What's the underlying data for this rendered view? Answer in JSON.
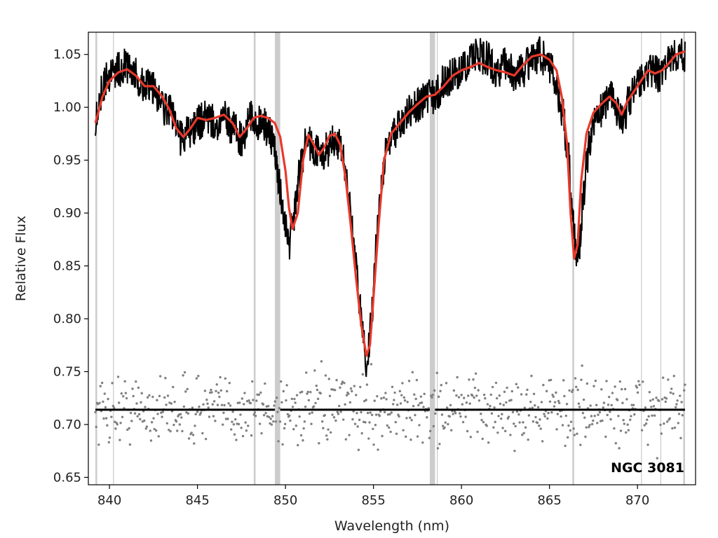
{
  "chart_data": {
    "type": "line",
    "xlabel": "Wavelength (nm)",
    "ylabel": "Relative Flux",
    "xlim": [
      838.8,
      873.3
    ],
    "ylim": [
      0.643,
      1.071
    ],
    "xticks": [
      840,
      845,
      850,
      855,
      860,
      865,
      870
    ],
    "yticks": [
      0.65,
      0.7,
      0.75,
      0.8,
      0.85,
      0.9,
      0.95,
      1.0,
      1.05
    ],
    "grid": false,
    "annotation": "NGC 3081",
    "colors": {
      "observed": "#000000",
      "model": "#e8392b",
      "residuals": "#808080",
      "masked_regions": "#cccccc",
      "residual_baseline": "#000000"
    },
    "series": [
      {
        "style": "black-line",
        "x": [
          839.2,
          839.6,
          840.0,
          840.5,
          841.0,
          841.5,
          842.0,
          842.5,
          843.0,
          843.5,
          844.0,
          844.5,
          845.0,
          845.5,
          846.0,
          846.5,
          847.0,
          847.5,
          848.0,
          848.5,
          849.0,
          849.4,
          849.6,
          849.9,
          850.2,
          850.5,
          850.8,
          851.2,
          851.6,
          852.0,
          852.4,
          852.8,
          853.2,
          853.6,
          854.0,
          854.3,
          854.6,
          854.9,
          855.2,
          855.6,
          856.0,
          856.5,
          857.0,
          857.5,
          858.0,
          858.5,
          859.0,
          859.5,
          860.0,
          860.5,
          861.0,
          861.5,
          862.0,
          862.5,
          863.0,
          863.5,
          864.0,
          864.5,
          865.0,
          865.4,
          865.8,
          866.1,
          866.3,
          866.5,
          866.7,
          866.9,
          867.2,
          867.6,
          868.0,
          868.4,
          868.8,
          869.2,
          869.6,
          870.0,
          870.4,
          870.8,
          871.2,
          871.6,
          872.0,
          872.4,
          872.7
        ],
        "y": [
          0.99,
          1.02,
          1.03,
          1.035,
          1.04,
          1.03,
          1.02,
          1.02,
          1.0,
          0.995,
          0.97,
          0.975,
          0.985,
          0.99,
          0.985,
          0.99,
          0.98,
          0.97,
          0.99,
          0.985,
          0.98,
          0.96,
          0.93,
          0.9,
          0.87,
          0.9,
          0.94,
          0.97,
          0.96,
          0.955,
          0.96,
          0.97,
          0.96,
          0.92,
          0.85,
          0.8,
          0.76,
          0.8,
          0.88,
          0.95,
          0.97,
          0.985,
          0.995,
          1.0,
          1.01,
          1.01,
          1.025,
          1.03,
          1.035,
          1.045,
          1.05,
          1.045,
          1.035,
          1.04,
          1.03,
          1.035,
          1.045,
          1.05,
          1.04,
          1.02,
          0.99,
          0.95,
          0.9,
          0.86,
          0.87,
          0.91,
          0.96,
          0.99,
          1.0,
          1.01,
          1.0,
          0.99,
          1.01,
          1.02,
          1.03,
          1.035,
          1.03,
          1.04,
          1.05,
          1.05,
          1.05
        ]
      },
      {
        "style": "red-line",
        "x": [
          839.2,
          839.6,
          840.0,
          840.5,
          841.0,
          841.5,
          842.0,
          842.5,
          843.0,
          843.4,
          843.8,
          844.2,
          844.6,
          845.0,
          845.5,
          846.0,
          846.5,
          847.0,
          847.4,
          847.8,
          848.2,
          848.6,
          849.0,
          849.4,
          849.7,
          850.0,
          850.2,
          850.4,
          850.7,
          851.0,
          851.3,
          851.6,
          851.9,
          852.2,
          852.5,
          852.8,
          853.1,
          853.4,
          853.7,
          854.0,
          854.3,
          854.6,
          854.8,
          855.0,
          855.3,
          855.6,
          856.0,
          856.5,
          857.0,
          857.5,
          858.0,
          858.5,
          859.0,
          859.5,
          860.0,
          860.5,
          861.0,
          861.5,
          862.0,
          862.5,
          863.0,
          863.5,
          864.0,
          864.5,
          865.0,
          865.4,
          865.7,
          866.0,
          866.2,
          866.4,
          866.6,
          866.8,
          867.1,
          867.5,
          868.0,
          868.4,
          868.8,
          869.1,
          869.4,
          869.8,
          870.2,
          870.6,
          871.0,
          871.4,
          871.8,
          872.2,
          872.7
        ],
        "y": [
          0.985,
          1.01,
          1.025,
          1.033,
          1.036,
          1.03,
          1.02,
          1.02,
          1.01,
          0.998,
          0.98,
          0.972,
          0.98,
          0.99,
          0.988,
          0.99,
          0.993,
          0.985,
          0.972,
          0.98,
          0.99,
          0.992,
          0.99,
          0.985,
          0.972,
          0.94,
          0.905,
          0.885,
          0.9,
          0.95,
          0.974,
          0.965,
          0.955,
          0.962,
          0.973,
          0.975,
          0.965,
          0.935,
          0.89,
          0.84,
          0.795,
          0.765,
          0.775,
          0.82,
          0.89,
          0.95,
          0.975,
          0.985,
          0.995,
          1.003,
          1.01,
          1.012,
          1.02,
          1.03,
          1.035,
          1.038,
          1.042,
          1.038,
          1.035,
          1.033,
          1.03,
          1.04,
          1.048,
          1.05,
          1.045,
          1.035,
          1.01,
          0.965,
          0.9,
          0.857,
          0.87,
          0.93,
          0.975,
          0.995,
          1.004,
          1.01,
          1.004,
          0.993,
          1.005,
          1.015,
          1.025,
          1.035,
          1.032,
          1.035,
          1.042,
          1.05,
          1.053
        ]
      }
    ],
    "masked_regions": [
      [
        839.2,
        839.3
      ],
      [
        840.2,
        840.25
      ],
      [
        848.2,
        848.3
      ],
      [
        849.4,
        849.7
      ],
      [
        858.2,
        858.5
      ],
      [
        858.6,
        858.65
      ],
      [
        866.3,
        866.4
      ],
      [
        870.2,
        870.25
      ],
      [
        871.3,
        871.35
      ],
      [
        872.6,
        872.7
      ]
    ],
    "residual_baseline": {
      "y": 0.714,
      "segments": [
        [
          839.2,
          849.4
        ],
        [
          849.7,
          858.2
        ],
        [
          858.5,
          872.7
        ]
      ]
    },
    "residual_points": {
      "x_range": [
        839.2,
        872.7
      ],
      "y_center": 0.714,
      "approximate_count": 700
    }
  }
}
